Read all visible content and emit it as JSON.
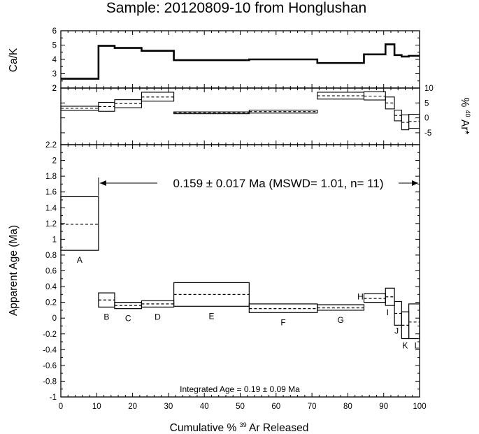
{
  "title": "Sample: 20120809-10 from Honglushan",
  "chart_data": [
    {
      "id": "ca_k",
      "type": "line",
      "ylabel": "Ca/K",
      "ylim": [
        2,
        6
      ],
      "yticks": [
        2,
        3,
        4,
        5,
        6
      ],
      "series": [
        {
          "steps": [
            {
              "x0": 0,
              "x1": 10.5,
              "v": 2.65
            },
            {
              "x0": 10.5,
              "x1": 15,
              "v": 4.95
            },
            {
              "x0": 15,
              "x1": 22.5,
              "v": 4.8
            },
            {
              "x0": 22.5,
              "x1": 31.5,
              "v": 4.6
            },
            {
              "x0": 31.5,
              "x1": 52.5,
              "v": 3.95
            },
            {
              "x0": 52.5,
              "x1": 71.5,
              "v": 4.0
            },
            {
              "x0": 71.5,
              "x1": 84.5,
              "v": 3.75
            },
            {
              "x0": 84.5,
              "x1": 90.5,
              "v": 4.35
            },
            {
              "x0": 90.5,
              "x1": 93,
              "v": 5.05
            },
            {
              "x0": 93,
              "x1": 95,
              "v": 4.3
            },
            {
              "x0": 95,
              "x1": 97,
              "v": 4.2
            },
            {
              "x0": 97,
              "x1": 100,
              "v": 4.25
            }
          ]
        }
      ]
    },
    {
      "id": "radiogenic",
      "type": "line",
      "ylabel": "% 40Ar*",
      "ylim": [
        -9,
        10
      ],
      "yticks": [
        10,
        5,
        0,
        -5
      ],
      "series": [
        {
          "steps": [
            {
              "x0": 0,
              "x1": 10.5,
              "lo": 2.5,
              "mid": 3.2,
              "hi": 3.9
            },
            {
              "x0": 10.5,
              "x1": 15,
              "lo": 2.2,
              "mid": 3.8,
              "hi": 5.2
            },
            {
              "x0": 15,
              "x1": 22.5,
              "lo": 3.4,
              "mid": 4.8,
              "hi": 6.1
            },
            {
              "x0": 22.5,
              "x1": 31.5,
              "lo": 5.6,
              "mid": 7.0,
              "hi": 8.6
            },
            {
              "x0": 31.5,
              "x1": 52.5,
              "lo": 1.4,
              "mid": 1.7,
              "hi": 2.0
            },
            {
              "x0": 52.5,
              "x1": 71.5,
              "lo": 1.6,
              "mid": 2.1,
              "hi": 2.6
            },
            {
              "x0": 71.5,
              "x1": 84.5,
              "lo": 6.3,
              "mid": 7.4,
              "hi": 8.6
            },
            {
              "x0": 84.5,
              "x1": 90.5,
              "lo": 6.0,
              "mid": 7.3,
              "hi": 8.8
            },
            {
              "x0": 90.5,
              "x1": 93,
              "lo": 3.0,
              "mid": 5.0,
              "hi": 7.0
            },
            {
              "x0": 93,
              "x1": 95,
              "lo": -1.0,
              "mid": 0.8,
              "hi": 2.6
            },
            {
              "x0": 95,
              "x1": 97,
              "lo": -4.0,
              "mid": -1.5,
              "hi": 1.0
            },
            {
              "x0": 97,
              "x1": 100,
              "lo": -3.5,
              "mid": -1.2,
              "hi": 1.2
            }
          ]
        }
      ]
    },
    {
      "id": "age_spectrum",
      "type": "line",
      "ylabel": "Apparent Age (Ma)",
      "xlabel": "Cumulative %39Ar Released",
      "xlim": [
        0,
        100
      ],
      "xticks": [
        0,
        10,
        20,
        30,
        40,
        50,
        60,
        70,
        80,
        90,
        100
      ],
      "ylim": [
        -1.0,
        2.2
      ],
      "yticks": [
        2.2,
        2.0,
        1.8,
        1.6,
        1.4,
        1.2,
        1.0,
        0.8,
        0.6,
        0.4,
        0.2,
        0,
        -0.2,
        -0.4,
        -0.6,
        -0.8,
        -1.0
      ],
      "steps": [
        {
          "label": "A",
          "x0": 0,
          "x1": 10.5,
          "lo": 0.86,
          "mid": 1.19,
          "hi": 1.54
        },
        {
          "label": "B",
          "x0": 10.5,
          "x1": 15,
          "lo": 0.14,
          "mid": 0.23,
          "hi": 0.32
        },
        {
          "label": "C",
          "x0": 15,
          "x1": 22.5,
          "lo": 0.12,
          "mid": 0.16,
          "hi": 0.2
        },
        {
          "label": "D",
          "x0": 22.5,
          "x1": 31.5,
          "lo": 0.14,
          "mid": 0.18,
          "hi": 0.22
        },
        {
          "label": "E",
          "x0": 31.5,
          "x1": 52.5,
          "lo": 0.15,
          "mid": 0.3,
          "hi": 0.45
        },
        {
          "label": "F",
          "x0": 52.5,
          "x1": 71.5,
          "lo": 0.07,
          "mid": 0.12,
          "hi": 0.18
        },
        {
          "label": "G",
          "x0": 71.5,
          "x1": 84.5,
          "lo": 0.1,
          "mid": 0.13,
          "hi": 0.17
        },
        {
          "label": "H",
          "x0": 84.5,
          "x1": 90.5,
          "lo": 0.2,
          "mid": 0.25,
          "hi": 0.31
        },
        {
          "label": "I",
          "x0": 90.5,
          "x1": 93,
          "lo": 0.16,
          "mid": 0.27,
          "hi": 0.38
        },
        {
          "label": "J",
          "x0": 93,
          "x1": 95,
          "lo": -0.09,
          "mid": 0.06,
          "hi": 0.21
        },
        {
          "label": "K",
          "x0": 95,
          "x1": 97,
          "lo": -0.26,
          "mid": -0.09,
          "hi": 0.08
        },
        {
          "label": "L",
          "x0": 97,
          "x1": 100,
          "lo": -0.26,
          "mid": -0.05,
          "hi": 0.18
        }
      ],
      "plateau": {
        "x0": 10.5,
        "x1": 100,
        "text": "0.159 ± 0.017 Ma (MSWD= 1.01, n= 11)"
      },
      "integrated_age": "Integrated Age = 0.19 ± 0.09 Ma"
    }
  ],
  "axis_labels": {
    "ca_k": "Ca/K",
    "radiogenic": {
      "prefix": "%",
      "mass": "40",
      "symbol": "Ar*"
    },
    "age": "Apparent Age (Ma)",
    "x": {
      "prefix": "Cumulative %",
      "mass": "39",
      "suffix": "Ar Released"
    }
  }
}
